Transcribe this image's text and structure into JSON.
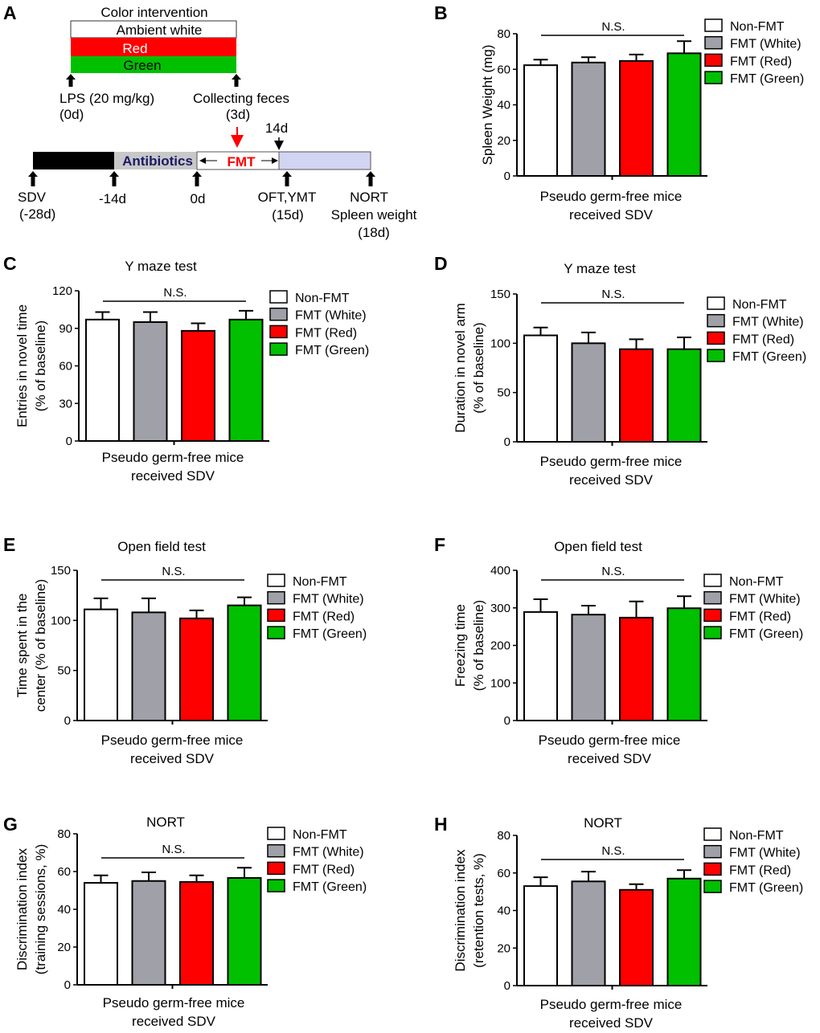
{
  "colors": {
    "Non-FMT": "#ffffff",
    "FMT (White)": "#a0a0a8",
    "FMT (Red)": "#ff0000",
    "FMT (Green)": "#00c000",
    "lavender": "#d2d4f2",
    "navy": "#1a1a66"
  },
  "panel_a": {
    "letter": "A",
    "color_intervention": "Color intervention",
    "ambient_white": "Ambient white",
    "red": "Red",
    "green": "Green",
    "lps": "LPS (20 mg/kg)",
    "lps_day": "(0d)",
    "collecting": "Collecting feces",
    "collecting_day": "(3d)",
    "day14": "14d",
    "antibiotics": "Antibiotics",
    "fmt": "FMT",
    "sdv": "SDV",
    "sdv_day": "(-28d)",
    "minus14": "-14d",
    "day0": "0d",
    "oft": "OFT,YMT",
    "oft_day": "(15d)",
    "nort": "NORT",
    "spleen": "Spleen weight",
    "nort_day": "(18d)"
  },
  "chart_data": [
    {
      "panel": "B",
      "type": "bar",
      "title": "",
      "ylabel": [
        "Spleen Weight (mg)"
      ],
      "xlabel": [
        "Pseudo germ-free mice",
        "received SDV"
      ],
      "ylim": [
        0,
        80
      ],
      "yticks": [
        0,
        20,
        40,
        60,
        80
      ],
      "annotation": "N.S.",
      "legend": [
        "Non-FMT",
        "FMT (White)",
        "FMT (Red)",
        "FMT (Green)"
      ],
      "values": [
        62.3,
        63.8,
        64.7,
        69.0
      ],
      "errors": [
        3.1,
        3.0,
        3.6,
        6.8
      ]
    },
    {
      "panel": "C",
      "type": "bar",
      "title": "Y maze test",
      "ylabel": [
        "Entries in novel time",
        "(% of baseline)"
      ],
      "xlabel": [
        "Pseudo germ-free mice",
        "received SDV"
      ],
      "ylim": [
        0,
        120
      ],
      "yticks": [
        0,
        30,
        60,
        90,
        120
      ],
      "annotation": "N.S.",
      "legend": [
        "Non-FMT",
        "FMT (White)",
        "FMT (Red)",
        "FMT (Green)"
      ],
      "values": [
        97,
        95,
        88,
        97
      ],
      "errors": [
        6,
        8,
        6,
        7
      ]
    },
    {
      "panel": "D",
      "type": "bar",
      "title": "Y maze test",
      "ylabel": [
        "Duration in novel arm",
        "(% of baseline)"
      ],
      "xlabel": [
        "Pseudo germ-free mice",
        "received SDV"
      ],
      "ylim": [
        0,
        150
      ],
      "yticks": [
        0,
        50,
        100,
        150
      ],
      "annotation": "N.S.",
      "legend": [
        "Non-FMT",
        "FMT (White)",
        "FMT (Red)",
        "FMT (Green)"
      ],
      "values": [
        108,
        100,
        94,
        94
      ],
      "errors": [
        8,
        11,
        10,
        12
      ]
    },
    {
      "panel": "E",
      "type": "bar",
      "title": "Open field test",
      "ylabel": [
        "Time spent in the",
        "center (% of baseline)"
      ],
      "xlabel": [
        "Pseudo germ-free mice",
        "received SDV"
      ],
      "ylim": [
        0,
        150
      ],
      "yticks": [
        0,
        50,
        100,
        150
      ],
      "annotation": "N.S.",
      "legend": [
        "Non-FMT",
        "FMT (White)",
        "FMT (Red)",
        "FMT (Green)"
      ],
      "values": [
        111,
        108,
        102,
        115
      ],
      "errors": [
        11,
        14,
        8,
        8
      ]
    },
    {
      "panel": "F",
      "type": "bar",
      "title": "Open field test",
      "ylabel": [
        "Freezing time",
        "(% of baseline)"
      ],
      "xlabel": [
        "Pseudo germ-free mice",
        "received SDV"
      ],
      "ylim": [
        0,
        400
      ],
      "yticks": [
        0,
        100,
        200,
        300,
        400
      ],
      "annotation": "N.S.",
      "legend": [
        "Non-FMT",
        "FMT (White)",
        "FMT (Red)",
        "FMT (Green)"
      ],
      "values": [
        289,
        282,
        274,
        299
      ],
      "errors": [
        34,
        24,
        43,
        32
      ]
    },
    {
      "panel": "G",
      "type": "bar",
      "title": "NORT",
      "ylabel": [
        "Discrimination index",
        "(training sessions, %)"
      ],
      "xlabel": [
        "Pseudo germ-free mice",
        "received SDV"
      ],
      "ylim": [
        0,
        80
      ],
      "yticks": [
        0,
        20,
        40,
        60,
        80
      ],
      "annotation": "N.S.",
      "legend": [
        "Non-FMT",
        "FMT (White)",
        "FMT (Red)",
        "FMT (Green)"
      ],
      "values": [
        54,
        55,
        54.5,
        56.6
      ],
      "errors": [
        4,
        4.6,
        3.5,
        5.4
      ]
    },
    {
      "panel": "H",
      "type": "bar",
      "title": "NORT",
      "ylabel": [
        "Discrimination index",
        "(retention tests, %)"
      ],
      "xlabel": [
        "Pseudo germ-free mice",
        "received SDV"
      ],
      "ylim": [
        0,
        80
      ],
      "yticks": [
        0,
        20,
        40,
        60,
        80
      ],
      "annotation": "N.S.",
      "legend": [
        "Non-FMT",
        "FMT (White)",
        "FMT (Red)",
        "FMT (Green)"
      ],
      "values": [
        53,
        55.5,
        51,
        57
      ],
      "errors": [
        4.7,
        5.2,
        3,
        4.5
      ]
    }
  ]
}
